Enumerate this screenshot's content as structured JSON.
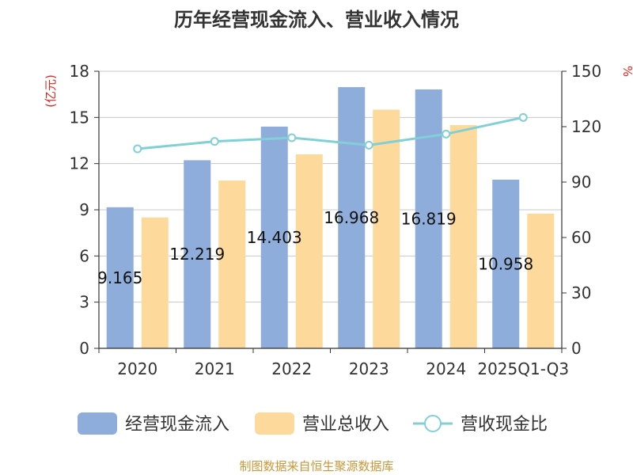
{
  "chart_data": {
    "type": "bar",
    "title": "历年经营现金流入、营业收入情况",
    "categories": [
      "2020",
      "2021",
      "2022",
      "2023",
      "2024",
      "2025Q1-Q3"
    ],
    "y_left": {
      "unit": "(亿元)",
      "range": [
        0,
        18
      ],
      "ticks": [
        0,
        3,
        6,
        9,
        12,
        15,
        18
      ]
    },
    "y_right": {
      "unit": "%",
      "range": [
        0,
        150
      ],
      "ticks": [
        0,
        30,
        60,
        90,
        120,
        150
      ]
    },
    "grid": true,
    "legend_position": "bottom",
    "series": [
      {
        "name": "经营现金流入",
        "type": "bar",
        "axis": "left",
        "color": "#8eaddb",
        "values": [
          9.165,
          12.219,
          14.403,
          16.968,
          16.819,
          10.958
        ],
        "labels": [
          "9.165",
          "12.219",
          "14.403",
          "16.968",
          "16.819",
          "10.958"
        ]
      },
      {
        "name": "营业总收入",
        "type": "bar",
        "axis": "left",
        "color": "#fdd99b",
        "values": [
          8.5,
          10.9,
          12.6,
          15.5,
          14.5,
          8.75
        ]
      },
      {
        "name": "营收现金比",
        "type": "line",
        "axis": "right",
        "color": "#80d0d6",
        "values": [
          108,
          112,
          114,
          110,
          116,
          125
        ]
      }
    ],
    "source": "制图数据来自恒生聚源数据库"
  }
}
